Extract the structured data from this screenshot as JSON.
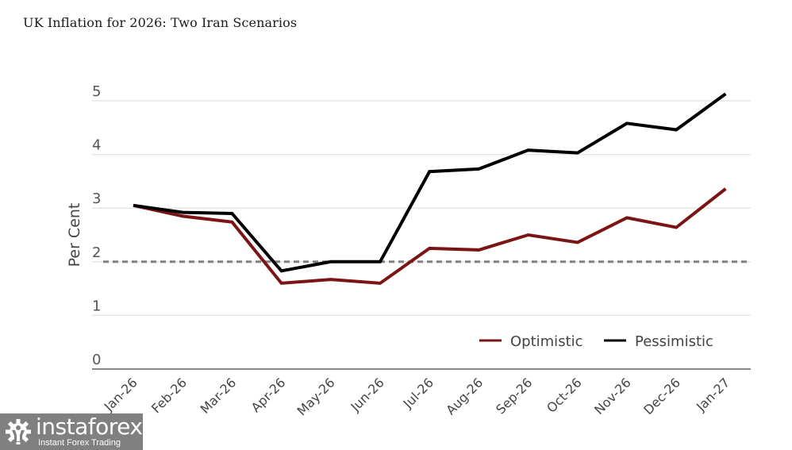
{
  "chart_data": {
    "type": "line",
    "title": "UK Inflation for 2026: Two Iran Scenarios",
    "xlabel": "",
    "ylabel": "Per Cent",
    "ylim": [
      0,
      5
    ],
    "yticks": [
      "0",
      "1",
      "2",
      "3",
      "4",
      "5"
    ],
    "grid": true,
    "legend_position": "bottom-right",
    "categories": [
      "Jan-26",
      "Feb-26",
      "Mar-26",
      "Apr-26",
      "May-26",
      "Jun-26",
      "Jul-26",
      "Aug-26",
      "Sep-26",
      "Oct-26",
      "Nov-26",
      "Dec-26",
      "Jan-27"
    ],
    "series": [
      {
        "name": "Optimistic",
        "color": "#7b1414",
        "values": [
          3.05,
          2.85,
          2.74,
          1.6,
          1.67,
          1.6,
          2.25,
          2.22,
          2.5,
          2.36,
          2.82,
          2.64,
          3.36
        ]
      },
      {
        "name": "Pessimistic",
        "color": "#000000",
        "values": [
          3.05,
          2.92,
          2.9,
          1.83,
          2.0,
          2.0,
          3.68,
          3.73,
          4.08,
          4.03,
          4.58,
          4.46,
          5.13
        ]
      }
    ],
    "reference_line": {
      "value": 2.0,
      "style": "dashed",
      "color": "#808080"
    }
  },
  "watermark": {
    "brand": "instaforex",
    "tagline": "Instant Forex Trading"
  }
}
